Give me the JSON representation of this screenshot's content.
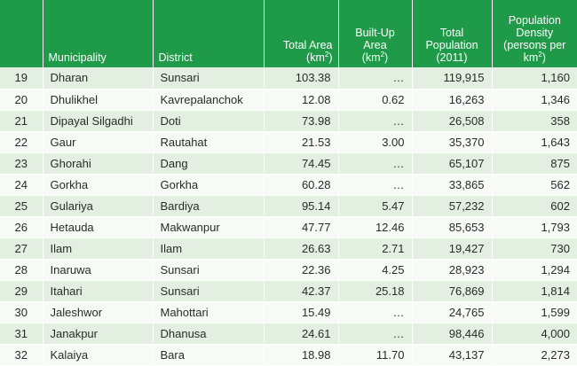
{
  "headers": {
    "number": "",
    "municipality": "Municipality",
    "district": "District",
    "total_area": "Total Area",
    "total_area_unit": "(km",
    "built_up_line1": "Built-Up",
    "built_up_line2": "Area",
    "built_up_unit": "(km",
    "total_pop_line1": "Total",
    "total_pop_line2": "Population",
    "total_pop_unit": "(2011)",
    "density_line1": "Population",
    "density_line2": "Density",
    "density_unit_line1": "(persons per",
    "density_unit_line2": "km",
    "superscript": "2",
    "close_paren": ")"
  },
  "rows": [
    {
      "no": "19",
      "municipality": "Dharan",
      "district": "Sunsari",
      "area": "103.38",
      "built_up": "…",
      "population": "119,915",
      "density": "1,160"
    },
    {
      "no": "20",
      "municipality": "Dhulikhel",
      "district": "Kavrepalanchok",
      "area": "12.08",
      "built_up": "0.62",
      "population": "16,263",
      "density": "1,346"
    },
    {
      "no": "21",
      "municipality": "Dipayal Silgadhi",
      "district": "Doti",
      "area": "73.98",
      "built_up": "…",
      "population": "26,508",
      "density": "358"
    },
    {
      "no": "22",
      "municipality": "Gaur",
      "district": "Rautahat",
      "area": "21.53",
      "built_up": "3.00",
      "population": "35,370",
      "density": "1,643"
    },
    {
      "no": "23",
      "municipality": "Ghorahi",
      "district": "Dang",
      "area": "74.45",
      "built_up": "…",
      "population": "65,107",
      "density": "875"
    },
    {
      "no": "24",
      "municipality": "Gorkha",
      "district": "Gorkha",
      "area": "60.28",
      "built_up": "…",
      "population": "33,865",
      "density": "562"
    },
    {
      "no": "25",
      "municipality": "Gulariya",
      "district": "Bardiya",
      "area": "95.14",
      "built_up": "5.47",
      "population": "57,232",
      "density": "602"
    },
    {
      "no": "26",
      "municipality": "Hetauda",
      "district": "Makwanpur",
      "area": "47.77",
      "built_up": "12.46",
      "population": "85,653",
      "density": "1,793"
    },
    {
      "no": "27",
      "municipality": "Ilam",
      "district": "Ilam",
      "area": "26.63",
      "built_up": "2.71",
      "population": "19,427",
      "density": "730"
    },
    {
      "no": "28",
      "municipality": "Inaruwa",
      "district": "Sunsari",
      "area": "22.36",
      "built_up": "4.25",
      "population": "28,923",
      "density": "1,294"
    },
    {
      "no": "29",
      "municipality": "Itahari",
      "district": "Sunsari",
      "area": "42.37",
      "built_up": "25.18",
      "population": "76,869",
      "density": "1,814"
    },
    {
      "no": "30",
      "municipality": "Jaleshwor",
      "district": "Mahottari",
      "area": "15.49",
      "built_up": "…",
      "population": "24,765",
      "density": "1,599"
    },
    {
      "no": "31",
      "municipality": "Janakpur",
      "district": "Dhanusa",
      "area": "24.61",
      "built_up": "…",
      "population": "98,446",
      "density": "4,000"
    },
    {
      "no": "32",
      "municipality": "Kalaiya",
      "district": "Bara",
      "area": "18.98",
      "built_up": "11.70",
      "population": "43,137",
      "density": "2,273"
    }
  ],
  "colors": {
    "header_bg": "#1f9a48",
    "row_odd": "#e3f0e1",
    "row_even": "#f7fbf5"
  }
}
